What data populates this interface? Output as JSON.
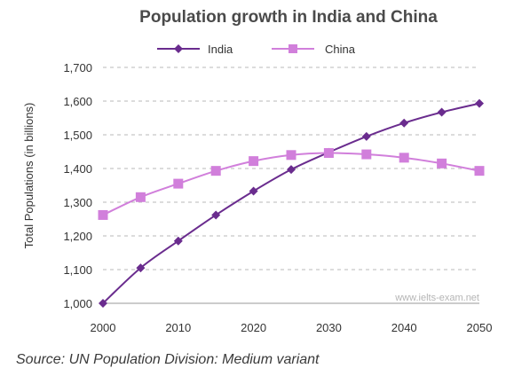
{
  "chart_data": {
    "type": "line",
    "title": "Population growth in India and China",
    "ylabel": "Total Populations (in billions)",
    "xlabel": "",
    "x": [
      2000,
      2005,
      2010,
      2015,
      2020,
      2025,
      2030,
      2035,
      2040,
      2045,
      2050
    ],
    "xticks": [
      2000,
      2010,
      2020,
      2030,
      2040,
      2050
    ],
    "xtick_labels": [
      "2000",
      "2010",
      "2020",
      "2030",
      "2040",
      "2050"
    ],
    "ylim": [
      1000,
      1700
    ],
    "xlim": [
      2000,
      2050
    ],
    "yticks": [
      1000,
      1100,
      1200,
      1300,
      1400,
      1500,
      1600,
      1700
    ],
    "ytick_labels": [
      "1,000",
      "1,100",
      "1,200",
      "1,300",
      "1,400",
      "1,500",
      "1,600",
      "1,700"
    ],
    "grid": true,
    "legend_position": "top",
    "series": [
      {
        "name": "India",
        "color": "#6a2c8e",
        "marker": "diamond",
        "values": [
          1000,
          1105,
          1185,
          1262,
          1333,
          1397,
          1448,
          1495,
          1535,
          1567,
          1593
        ]
      },
      {
        "name": "China",
        "color": "#d17fdb",
        "marker": "square",
        "values": [
          1262,
          1315,
          1355,
          1393,
          1422,
          1440,
          1446,
          1442,
          1432,
          1415,
          1393
        ]
      }
    ],
    "watermark": "www.ielts-exam.net",
    "source": "Source: UN Population Division: Medium variant"
  }
}
